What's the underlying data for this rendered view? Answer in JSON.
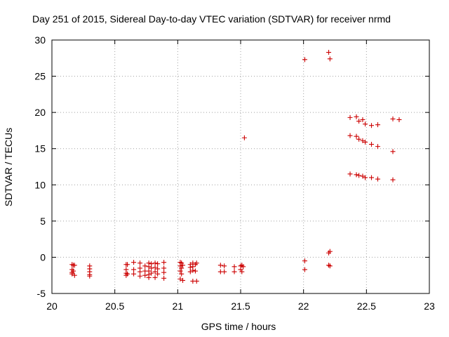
{
  "chart_data": {
    "type": "scatter",
    "title": "Day 251 of 2015, Sidereal Day-to-day VTEC variation (SDTVAR) for receiver nrmd",
    "xlabel": "GPS time / hours",
    "ylabel": "SDTVAR / TECUs",
    "xlim": [
      20,
      23
    ],
    "ylim": [
      -5,
      30
    ],
    "grid": true,
    "x_ticks": [
      20,
      20.5,
      21,
      21.5,
      22,
      22.5,
      23
    ],
    "x_tick_labels": [
      "20",
      "20.5",
      "21",
      "21.5",
      "22",
      "22.5",
      "23"
    ],
    "y_ticks": [
      -5,
      0,
      5,
      10,
      15,
      20,
      25,
      30
    ],
    "y_tick_labels": [
      "-5",
      "0",
      "5",
      "10",
      "15",
      "20",
      "25",
      "30"
    ],
    "marker": "+",
    "color": "#cc0000",
    "series": [
      {
        "name": "SDTVAR",
        "points": [
          [
            20.16,
            -1.0
          ],
          [
            20.16,
            -1.7
          ],
          [
            20.16,
            -2.1
          ],
          [
            20.16,
            -2.3
          ],
          [
            20.17,
            -1.1
          ],
          [
            20.17,
            -1.9
          ],
          [
            20.18,
            -2.5
          ],
          [
            20.18,
            -1.1
          ],
          [
            20.3,
            -1.2
          ],
          [
            20.3,
            -1.6
          ],
          [
            20.3,
            -2.0
          ],
          [
            20.3,
            -2.4
          ],
          [
            20.3,
            -2.6
          ],
          [
            20.59,
            -1.0
          ],
          [
            20.59,
            -1.7
          ],
          [
            20.59,
            -2.2
          ],
          [
            20.59,
            -2.5
          ],
          [
            20.6,
            -1.0
          ],
          [
            20.6,
            -2.3
          ],
          [
            20.65,
            -0.7
          ],
          [
            20.65,
            -1.7
          ],
          [
            20.65,
            -2.3
          ],
          [
            20.7,
            -0.8
          ],
          [
            20.7,
            -1.5
          ],
          [
            20.7,
            -2.0
          ],
          [
            20.7,
            -2.6
          ],
          [
            20.74,
            -1.2
          ],
          [
            20.74,
            -1.9
          ],
          [
            20.74,
            -2.5
          ],
          [
            20.77,
            -0.8
          ],
          [
            20.77,
            -1.3
          ],
          [
            20.77,
            -1.9
          ],
          [
            20.77,
            -2.4
          ],
          [
            20.77,
            -2.8
          ],
          [
            20.79,
            -0.9
          ],
          [
            20.79,
            -1.5
          ],
          [
            20.79,
            -2.2
          ],
          [
            20.82,
            -0.8
          ],
          [
            20.82,
            -1.4
          ],
          [
            20.82,
            -2.0
          ],
          [
            20.82,
            -2.8
          ],
          [
            20.84,
            -0.9
          ],
          [
            20.84,
            -1.6
          ],
          [
            20.84,
            -2.3
          ],
          [
            20.89,
            -0.7
          ],
          [
            20.89,
            -1.5
          ],
          [
            20.89,
            -2.1
          ],
          [
            20.89,
            -2.9
          ],
          [
            21.02,
            -0.7
          ],
          [
            21.02,
            -1.2
          ],
          [
            21.02,
            -1.9
          ],
          [
            21.02,
            -3.0
          ],
          [
            21.03,
            -0.8
          ],
          [
            21.03,
            -1.5
          ],
          [
            21.03,
            -2.3
          ],
          [
            21.04,
            -1.1
          ],
          [
            21.04,
            -3.2
          ],
          [
            21.1,
            -1.0
          ],
          [
            21.1,
            -1.4
          ],
          [
            21.1,
            -2.0
          ],
          [
            21.12,
            -0.8
          ],
          [
            21.12,
            -1.3
          ],
          [
            21.12,
            -1.8
          ],
          [
            21.12,
            -3.3
          ],
          [
            21.14,
            -1.0
          ],
          [
            21.14,
            -1.9
          ],
          [
            21.15,
            -0.8
          ],
          [
            21.15,
            -3.3
          ],
          [
            21.34,
            -1.1
          ],
          [
            21.34,
            -2.0
          ],
          [
            21.37,
            -1.2
          ],
          [
            21.37,
            -2.0
          ],
          [
            21.45,
            -1.3
          ],
          [
            21.45,
            -2.0
          ],
          [
            21.5,
            -1.2
          ],
          [
            21.5,
            -1.7
          ],
          [
            21.51,
            -1.1
          ],
          [
            21.51,
            -2.0
          ],
          [
            21.52,
            -1.3
          ],
          [
            21.53,
            16.5
          ],
          [
            22.01,
            27.3
          ],
          [
            22.01,
            -0.5
          ],
          [
            22.01,
            -1.7
          ],
          [
            22.2,
            28.3
          ],
          [
            22.21,
            27.4
          ],
          [
            22.2,
            0.6
          ],
          [
            22.21,
            0.8
          ],
          [
            22.2,
            -1.1
          ],
          [
            22.21,
            -1.2
          ],
          [
            22.37,
            19.3
          ],
          [
            22.37,
            16.8
          ],
          [
            22.37,
            11.5
          ],
          [
            22.42,
            19.4
          ],
          [
            22.42,
            16.7
          ],
          [
            22.42,
            11.4
          ],
          [
            22.44,
            18.8
          ],
          [
            22.44,
            16.3
          ],
          [
            22.44,
            11.3
          ],
          [
            22.47,
            19.0
          ],
          [
            22.47,
            16.1
          ],
          [
            22.47,
            11.2
          ],
          [
            22.49,
            18.4
          ],
          [
            22.49,
            15.9
          ],
          [
            22.49,
            11.0
          ],
          [
            22.54,
            18.2
          ],
          [
            22.54,
            15.6
          ],
          [
            22.54,
            11.0
          ],
          [
            22.59,
            18.3
          ],
          [
            22.59,
            15.3
          ],
          [
            22.59,
            10.8
          ],
          [
            22.71,
            19.1
          ],
          [
            22.71,
            14.6
          ],
          [
            22.71,
            10.7
          ],
          [
            22.76,
            19.0
          ]
        ]
      }
    ]
  }
}
